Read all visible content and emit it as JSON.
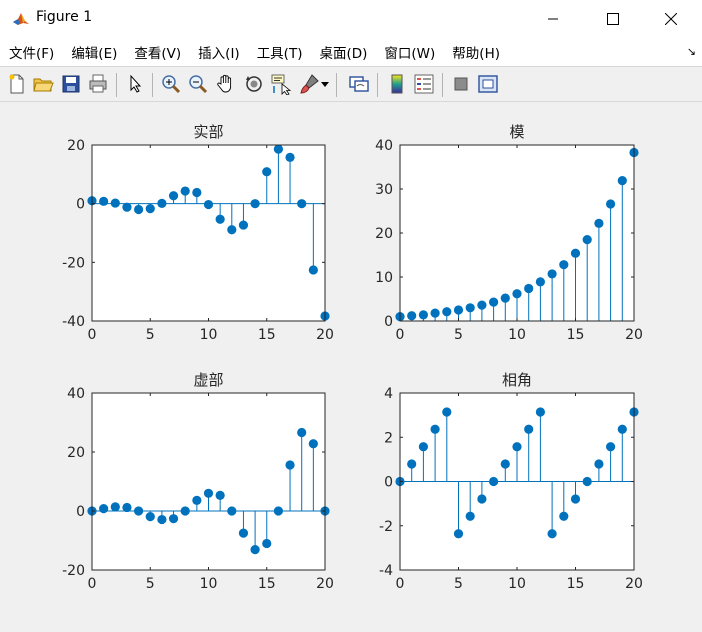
{
  "window": {
    "title": "Figure 1",
    "minimize_icon": "minimize-icon",
    "maximize_icon": "maximize-icon",
    "close_icon": "close-icon"
  },
  "menu": [
    {
      "label": "文件(F)"
    },
    {
      "label": "编辑(E)"
    },
    {
      "label": "查看(V)"
    },
    {
      "label": "插入(I)"
    },
    {
      "label": "工具(T)"
    },
    {
      "label": "桌面(D)"
    },
    {
      "label": "窗口(W)"
    },
    {
      "label": "帮助(H)"
    }
  ],
  "menu_arrow": "↘",
  "toolbar": [
    "new-figure-icon",
    "open-file-icon",
    "save-icon",
    "print-icon",
    "select-arrow-icon",
    "zoom-in-icon",
    "zoom-out-icon",
    "pan-hand-icon",
    "rotate-3d-icon",
    "data-cursor-icon",
    "brush-icon",
    "link-plot-icon",
    "colorbar-icon",
    "legend-icon",
    "hide-plot-tools-icon",
    "show-plot-tools-icon"
  ],
  "colors": {
    "stem": "#0072bd",
    "axes_bg": "#ffffff",
    "figure_bg": "#f0f0f0"
  },
  "chart_data": [
    {
      "type": "stem",
      "title": "实部",
      "x": [
        0,
        1,
        2,
        3,
        4,
        5,
        6,
        7,
        8,
        9,
        10,
        11,
        12,
        13,
        14,
        15,
        16,
        17,
        18,
        19,
        20
      ],
      "values": [
        1.0,
        0.8,
        0.2,
        -1.2,
        -2.0,
        -1.7,
        0.1,
        2.7,
        4.3,
        3.8,
        -0.3,
        -5.3,
        -8.9,
        -7.3,
        0.0,
        10.9,
        18.6,
        15.8,
        0.0,
        -22.6,
        -38.3
      ],
      "xlim": [
        0,
        20
      ],
      "ylim": [
        -40,
        20
      ],
      "xticks": [
        "0",
        "5",
        "10",
        "15",
        "20"
      ],
      "yticks": [
        "20",
        "0",
        "-20",
        "-40"
      ],
      "ytick_values": [
        20,
        0,
        -20,
        -40
      ],
      "xtick_values": [
        0,
        5,
        10,
        15,
        20
      ]
    },
    {
      "type": "stem",
      "title": "模",
      "x": [
        0,
        1,
        2,
        3,
        4,
        5,
        6,
        7,
        8,
        9,
        10,
        11,
        12,
        13,
        14,
        15,
        16,
        17,
        18,
        19,
        20
      ],
      "values": [
        1.0,
        1.2,
        1.4,
        1.8,
        2.1,
        2.5,
        3.0,
        3.6,
        4.3,
        5.2,
        6.2,
        7.4,
        8.9,
        10.7,
        12.8,
        15.4,
        18.5,
        22.2,
        26.6,
        31.9,
        38.3
      ],
      "xlim": [
        0,
        20
      ],
      "ylim": [
        0,
        40
      ],
      "xticks": [
        "0",
        "5",
        "10",
        "15",
        "20"
      ],
      "yticks": [
        "40",
        "30",
        "20",
        "10",
        "0"
      ],
      "ytick_values": [
        40,
        30,
        20,
        10,
        0
      ],
      "xtick_values": [
        0,
        5,
        10,
        15,
        20
      ]
    },
    {
      "type": "stem",
      "title": "虚部",
      "x": [
        0,
        1,
        2,
        3,
        4,
        5,
        6,
        7,
        8,
        9,
        10,
        11,
        12,
        13,
        14,
        15,
        16,
        17,
        18,
        19,
        20
      ],
      "values": [
        0.0,
        0.8,
        1.4,
        1.2,
        0.0,
        -1.9,
        -2.9,
        -2.6,
        0.0,
        3.6,
        6.0,
        5.3,
        0.0,
        -7.5,
        -13.1,
        -11.0,
        0.0,
        15.6,
        26.6,
        22.8,
        0.0
      ],
      "xlim": [
        0,
        20
      ],
      "ylim": [
        -20,
        40
      ],
      "xticks": [
        "0",
        "5",
        "10",
        "15",
        "20"
      ],
      "yticks": [
        "40",
        "20",
        "0",
        "-20"
      ],
      "ytick_values": [
        40,
        20,
        0,
        -20
      ],
      "xtick_values": [
        0,
        5,
        10,
        15,
        20
      ]
    },
    {
      "type": "stem",
      "title": "相角",
      "x": [
        0,
        1,
        2,
        3,
        4,
        5,
        6,
        7,
        8,
        9,
        10,
        11,
        12,
        13,
        14,
        15,
        16,
        17,
        18,
        19,
        20
      ],
      "values": [
        0.0,
        0.79,
        1.57,
        2.36,
        3.14,
        -2.36,
        -1.57,
        -0.79,
        0.0,
        0.79,
        1.57,
        2.36,
        3.14,
        -2.36,
        -1.57,
        -0.79,
        0.0,
        0.79,
        1.57,
        2.36,
        3.14
      ],
      "xlim": [
        0,
        20
      ],
      "ylim": [
        -4,
        4
      ],
      "xticks": [
        "0",
        "5",
        "10",
        "15",
        "20"
      ],
      "yticks": [
        "4",
        "2",
        "0",
        "-2",
        "-4"
      ],
      "ytick_values": [
        4,
        2,
        0,
        -2,
        -4
      ],
      "xtick_values": [
        0,
        5,
        10,
        15,
        20
      ]
    }
  ]
}
